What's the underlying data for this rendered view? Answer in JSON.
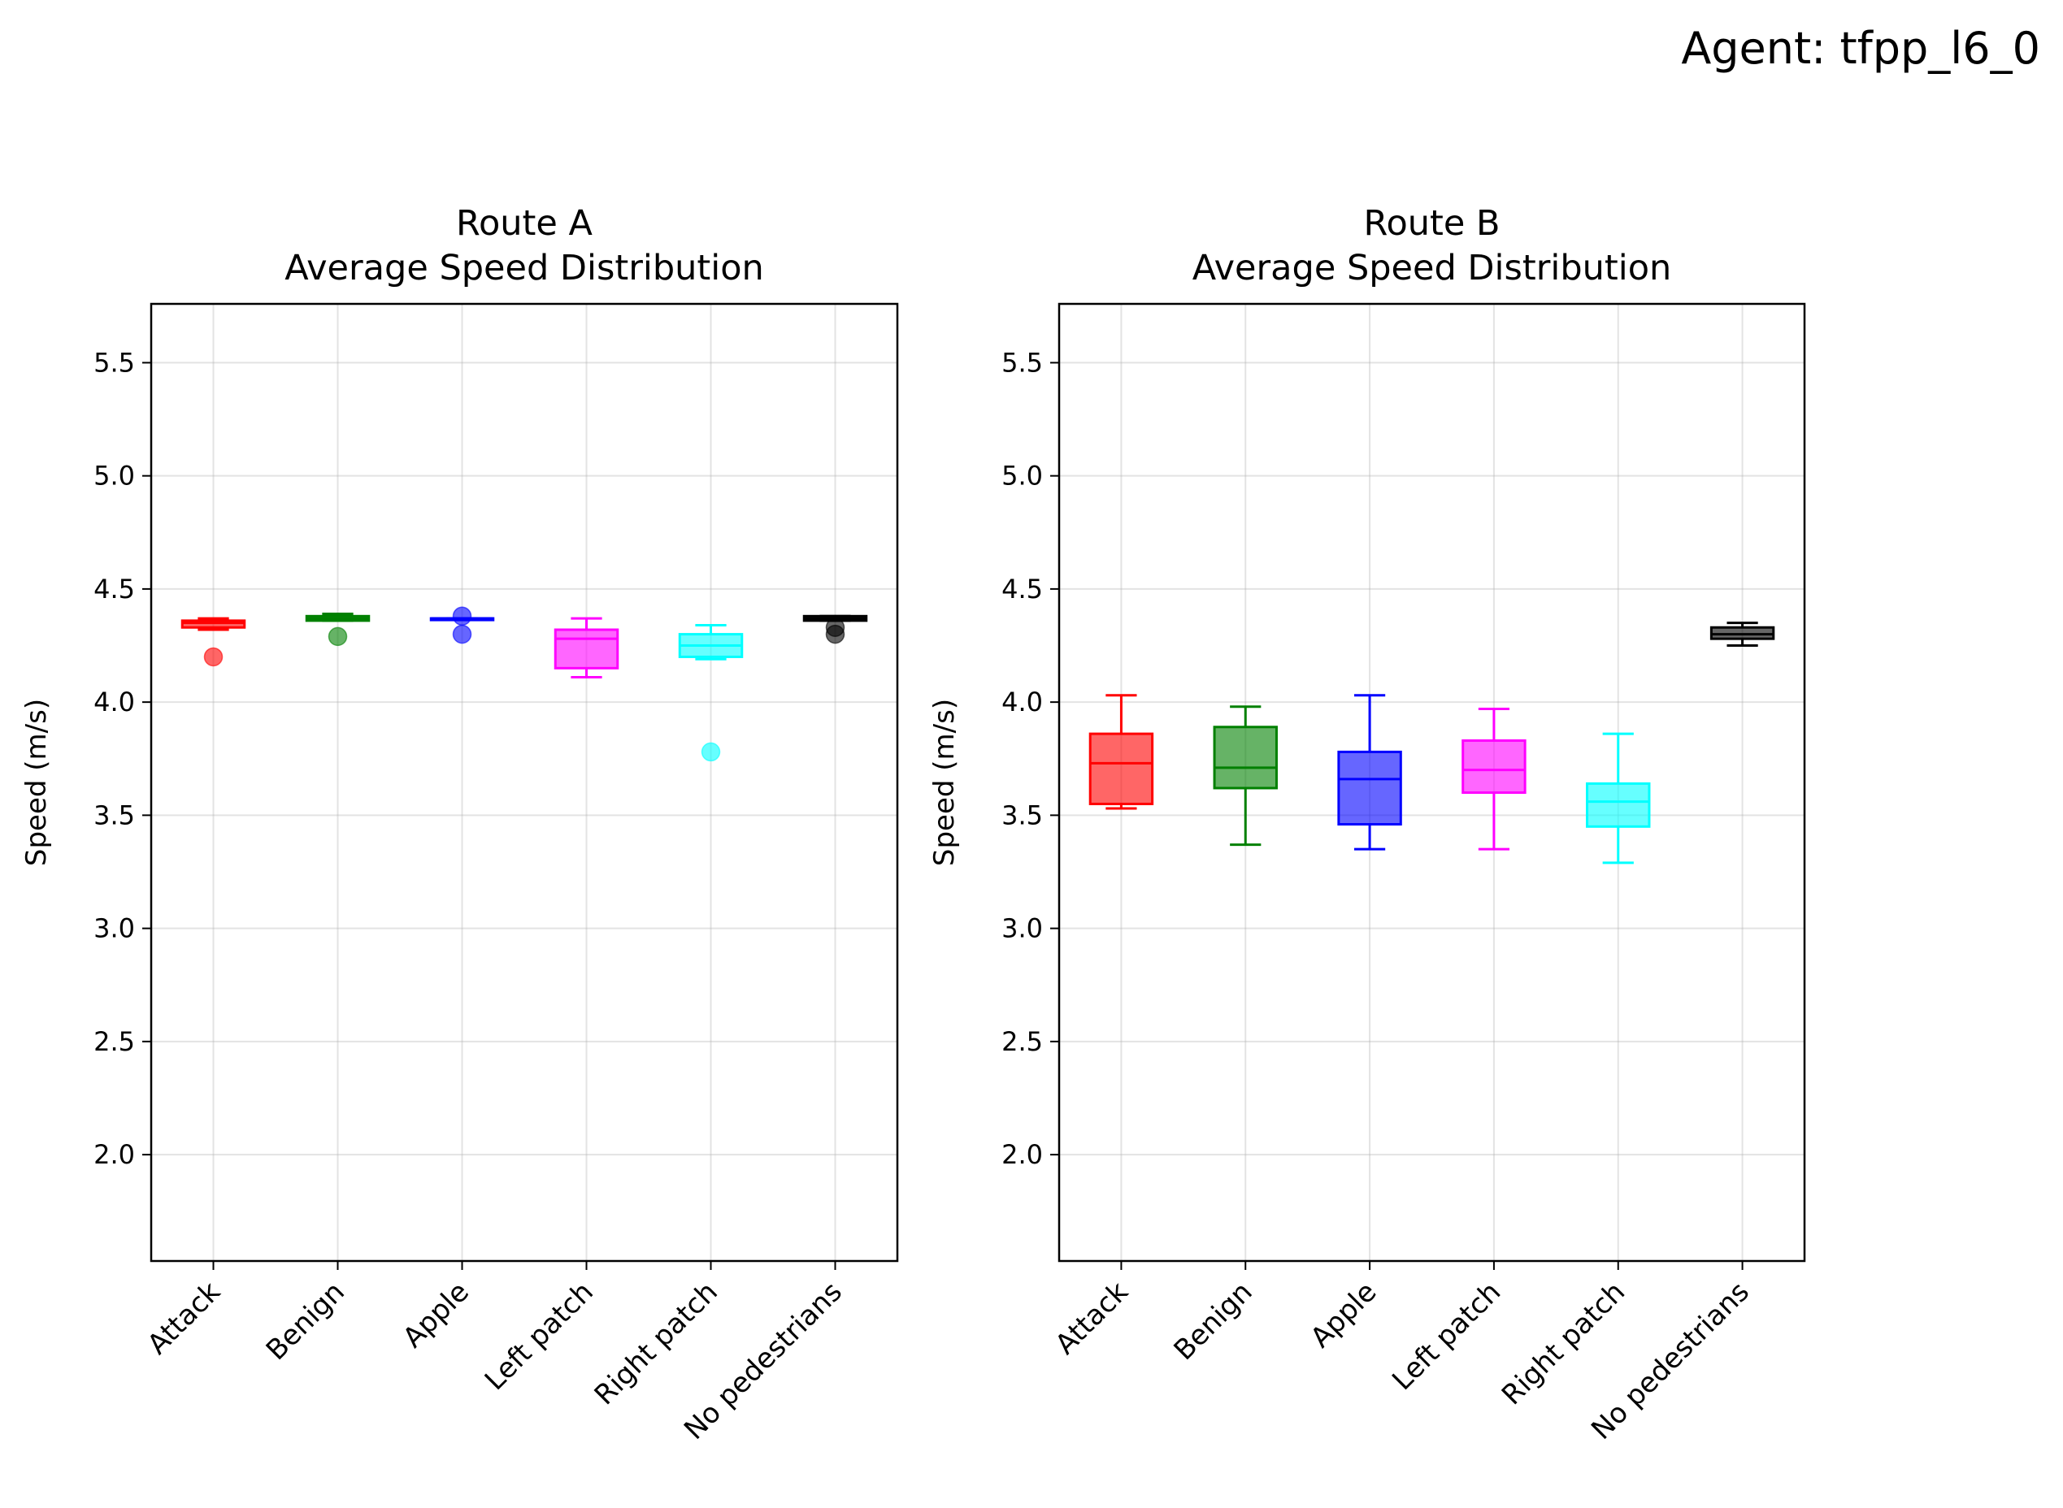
{
  "suptitle": "Agent: tfpp_l6_0",
  "chart_data": [
    {
      "type": "box",
      "title": "Route A\nAverage Speed Distribution",
      "xlabel": "",
      "ylabel": "Speed (m/s)",
      "ylim": [
        1.53,
        5.76
      ],
      "yticks": [
        2.0,
        2.5,
        3.0,
        3.5,
        4.0,
        4.5,
        5.0,
        5.5
      ],
      "grid": true,
      "categories": [
        "Attack",
        "Benign",
        "Apple",
        "Left patch",
        "Right patch",
        "No pedestrians"
      ],
      "colors": [
        "#ff0000",
        "#008000",
        "#0000ff",
        "#ff00ff",
        "#00ffff",
        "#000000"
      ],
      "boxes": [
        {
          "whislo": 4.32,
          "q1": 4.33,
          "med": 4.35,
          "q3": 4.36,
          "whishi": 4.37,
          "fliers": [
            4.2
          ]
        },
        {
          "whislo": 4.36,
          "q1": 4.36,
          "med": 4.37,
          "q3": 4.38,
          "whishi": 4.39,
          "fliers": [
            4.29
          ]
        },
        {
          "whislo": 4.37,
          "q1": 4.37,
          "med": 4.37,
          "q3": 4.37,
          "whishi": 4.37,
          "fliers": [
            4.38,
            4.3
          ]
        },
        {
          "whislo": 4.11,
          "q1": 4.15,
          "med": 4.28,
          "q3": 4.32,
          "whishi": 4.37,
          "fliers": []
        },
        {
          "whislo": 4.19,
          "q1": 4.2,
          "med": 4.25,
          "q3": 4.3,
          "whishi": 4.34,
          "fliers": [
            3.78
          ]
        },
        {
          "whislo": 4.36,
          "q1": 4.36,
          "med": 4.37,
          "q3": 4.38,
          "whishi": 4.38,
          "fliers": [
            4.33,
            4.3
          ]
        }
      ]
    },
    {
      "type": "box",
      "title": "Route B\nAverage Speed Distribution",
      "xlabel": "",
      "ylabel": "Speed (m/s)",
      "ylim": [
        1.53,
        5.76
      ],
      "yticks": [
        2.0,
        2.5,
        3.0,
        3.5,
        4.0,
        4.5,
        5.0,
        5.5
      ],
      "grid": true,
      "categories": [
        "Attack",
        "Benign",
        "Apple",
        "Left patch",
        "Right patch",
        "No pedestrians"
      ],
      "colors": [
        "#ff0000",
        "#008000",
        "#0000ff",
        "#ff00ff",
        "#00ffff",
        "#000000"
      ],
      "boxes": [
        {
          "whislo": 3.53,
          "q1": 3.55,
          "med": 3.73,
          "q3": 3.86,
          "whishi": 4.03,
          "fliers": []
        },
        {
          "whislo": 3.37,
          "q1": 3.62,
          "med": 3.71,
          "q3": 3.89,
          "whishi": 3.98,
          "fliers": []
        },
        {
          "whislo": 3.35,
          "q1": 3.46,
          "med": 3.66,
          "q3": 3.78,
          "whishi": 4.03,
          "fliers": []
        },
        {
          "whislo": 3.35,
          "q1": 3.6,
          "med": 3.7,
          "q3": 3.83,
          "whishi": 3.97,
          "fliers": []
        },
        {
          "whislo": 3.29,
          "q1": 3.45,
          "med": 3.56,
          "q3": 3.64,
          "whishi": 3.86,
          "fliers": []
        },
        {
          "whislo": 4.25,
          "q1": 4.28,
          "med": 4.3,
          "q3": 4.33,
          "whishi": 4.35,
          "fliers": []
        }
      ]
    }
  ]
}
